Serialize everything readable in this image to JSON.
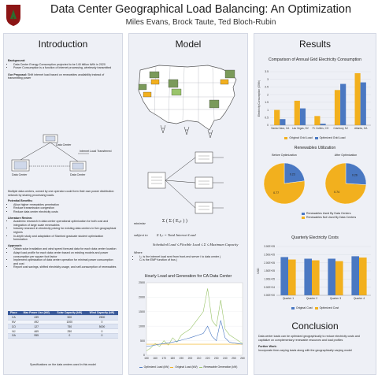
{
  "header": {
    "title": "Data Center Geographical Load Balancing: An Optimization",
    "authors": "Miles Evans, Brock Taute, Ted Bloch-Rubin"
  },
  "intro": {
    "heading": "Introduction",
    "background_label": "Background:",
    "background_items": [
      "Data Center Energy Consumption projected to be 140 billion kWh in 2020",
      "Power Consumption is a function of internet processing, wirelessly transmitted"
    ],
    "proposal_label": "Our Proposal:",
    "proposal_text": "Shift internet load based on renewables availability instead of transmitting power",
    "diagram_labels": {
      "dc_a": "Data Center",
      "dc_b": "Data Center",
      "dc_c": "Data Center",
      "transfer": "Internet Load Transferred"
    },
    "caption": "Multiple data centers, owned by one operator could form their own power distribution network by sharing processing loads.",
    "benefits_label": "Potential Benefits:",
    "benefits": [
      "Allow higher renewables penetration",
      "Reduce transmission congestion",
      "Reduce data center electricity costs"
    ],
    "lit_label": "Literature Review:",
    "lit_items": [
      "Academic research in data center operational optimization for both cost and integration of large scale renewables",
      "Industry research in electricity pricing for existing data centers in five geographical regions",
      "In-depth study and adaptation of Stanford graduate student optimization formulation"
    ],
    "approach_label": "Approach:",
    "approach_items": [
      "Obtain solar irradiation and wind speed forecast data for each data center location",
      "Adapt load profile for each data center based on existing models and power consumption per square foot factor",
      "Implement optimization of data center operation for minimal power consumption and cost",
      "Report cost savings, shifted electricity usage, and self-consumption of renewables"
    ],
    "table": {
      "headers": [
        "Place",
        "Max Power Use (kW)",
        "Solar Capacity (kW)",
        "Wind Capacity (kW)"
      ],
      "rows": [
        [
          "CA",
          "439",
          "500",
          "2500"
        ],
        [
          "NV",
          "492",
          "1000",
          "0"
        ],
        [
          "CO",
          "127",
          "750",
          "5000"
        ],
        [
          "NJ",
          "469",
          "250",
          "0"
        ],
        [
          "GA",
          "955",
          "0",
          "0"
        ]
      ]
    },
    "table_caption": "Specifications on the data centers used in this model"
  },
  "model": {
    "heading": "Model",
    "formula": {
      "minimize": "minimize",
      "objective": "Σ ( Σ ( Eᵢ,ₜ ) )",
      "subject_to": "subject to",
      "c1": "Σ Iᵢ,ₜ = Total Internet Load",
      "c2": "Scheduled Load ≤ Flexible Load ≤ Σ ≤ Maximum Capacity",
      "where": "Where",
      "w1": "Iᵢ,ₜ is the internet load sent from front-end server i to data center j",
      "w2": "Cᵢ is the EMP function of bus j"
    },
    "chart_title": "Hourly Load and Generation for CA Data Center",
    "legend": [
      "Optimized Load (kW)",
      "Original Load (kW)",
      "Renewable Generation (kW)"
    ]
  },
  "results": {
    "heading": "Results",
    "bar1_title": "Comparison of Annual Grid Electricity Consumption",
    "bar1_ylabel": "Electricity Consumption (GWh)",
    "bar1_legend": [
      "Original Grid Load",
      "Optimized Grid Load"
    ],
    "pie_title": "Renewables Utilization",
    "pie_before": "Before Optimization",
    "pie_after": "After Optimization",
    "pie_legend": [
      "Renewables Used By Data Centers",
      "Renewables Not Used By Data Centers"
    ],
    "bar2_title": "Quarterly Electricity Costs",
    "bar2_ylabel": "USD",
    "bar2_legend": [
      "Original Cost",
      "Optimized Cost"
    ],
    "conclusion_heading": "Conclusion",
    "conclusion_text": "Data center loads can be optimized geographically to reduce electricity costs and capitalize on complementary renewable resources and load profiles",
    "further_label": "Further Work:",
    "further_text": "Incorporate time-varying loads along with the geographically varying model"
  },
  "chart_data": [
    {
      "type": "bar",
      "title": "Comparison of Annual Grid Electricity Consumption",
      "ylabel": "Electricity Consumption (GWh)",
      "categories": [
        "Santa Clara, CA",
        "Las Vegas, NV",
        "Ft. Collins, CO",
        "Cranbury, NJ",
        "Atlanta, GA"
      ],
      "series": [
        {
          "name": "Original Grid Load",
          "values": [
            1.0,
            1.6,
            0.6,
            2.3,
            3.4
          ]
        },
        {
          "name": "Optimized Grid Load",
          "values": [
            0.4,
            1.1,
            0.1,
            2.7,
            2.8
          ]
        }
      ],
      "ylim": [
        0,
        3.5
      ],
      "yticks": [
        0,
        0.5,
        1,
        1.5,
        2,
        2.5,
        3,
        3.5
      ],
      "colors": [
        "#f2b01e",
        "#4a78c2"
      ]
    },
    {
      "type": "pie",
      "title": "Before Optimization",
      "labels": [
        "Renewables Used By Data Centers",
        "Renewables Not Used By Data Centers"
      ],
      "values": [
        0.23,
        0.77
      ],
      "colors": [
        "#4a78c2",
        "#f2b01e"
      ]
    },
    {
      "type": "pie",
      "title": "After Optimization",
      "labels": [
        "Renewables Used By Data Centers",
        "Renewables Not Used By Data Centers"
      ],
      "values": [
        0.26,
        0.74
      ],
      "colors": [
        "#4a78c2",
        "#f2b01e"
      ]
    },
    {
      "type": "bar",
      "title": "Quarterly Electricity Costs",
      "ylabel": "USD",
      "categories": [
        "Quarter 1",
        "Quarter 2",
        "Quarter 3",
        "Quarter 4"
      ],
      "series": [
        {
          "name": "Original Cost",
          "values": [
            235000,
            225000,
            225000,
            240000
          ]
        },
        {
          "name": "Optimized Cost",
          "values": [
            220000,
            215000,
            210000,
            232000
          ]
        }
      ],
      "ylim": [
        0,
        300000
      ],
      "ytick_labels": [
        "0.00E+00",
        "5.00E+04",
        "1.00E+05",
        "1.50E+05",
        "2.00E+05",
        "2.50E+05",
        "3.00E+05"
      ],
      "colors": [
        "#4a78c2",
        "#f2b01e"
      ]
    },
    {
      "type": "line",
      "title": "Hourly Load and Generation for CA Data Center",
      "x": [
        150,
        155,
        160,
        165,
        170,
        175,
        180,
        185,
        190,
        195,
        200,
        205,
        210,
        215,
        220,
        225,
        230,
        235,
        240,
        245,
        250,
        255,
        260
      ],
      "xticks": [
        150,
        160,
        170,
        180,
        190,
        200,
        210,
        220,
        230,
        240,
        250,
        260
      ],
      "ylim": [
        0,
        2500
      ],
      "yticks": [
        0,
        500,
        1000,
        1500,
        2000,
        2500
      ],
      "series": [
        {
          "name": "Optimized Load (kW)",
          "values": [
            300,
            320,
            350,
            380,
            400,
            420,
            450,
            480,
            520,
            560,
            600,
            650,
            700,
            750,
            1000,
            650,
            500,
            1200,
            600,
            450,
            420,
            400,
            380
          ]
        },
        {
          "name": "Original Load (kW)",
          "values": [
            380,
            380,
            380,
            380,
            380,
            380,
            380,
            380,
            380,
            380,
            380,
            380,
            380,
            380,
            380,
            380,
            380,
            380,
            380,
            380,
            380,
            380,
            380
          ]
        },
        {
          "name": "Renewable Generation (kW)",
          "values": [
            150,
            250,
            400,
            300,
            500,
            350,
            600,
            450,
            700,
            800,
            900,
            1100,
            1300,
            1500,
            2300,
            1200,
            1000,
            1900,
            900,
            700,
            600,
            500,
            400
          ]
        }
      ],
      "colors": [
        "#4a78c2",
        "#f2b01e",
        "#9ac46a"
      ]
    }
  ]
}
